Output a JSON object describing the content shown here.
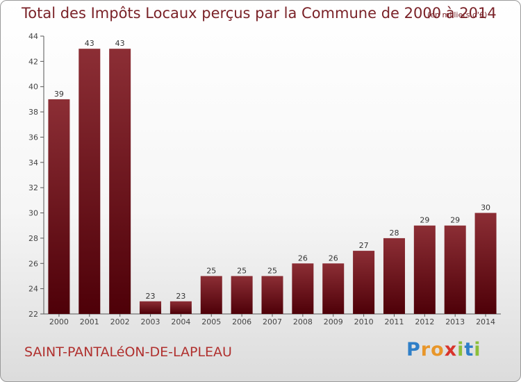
{
  "header": {
    "title": "Total des Impôts Locaux perçus par la Commune de 2000 à 2014",
    "subtitle": "(en milliers d'€)"
  },
  "footer": {
    "commune": "SAINT-PANTALéON-DE-LAPLEAU",
    "logo": {
      "letters": [
        "P",
        "r",
        "o",
        "x",
        "i",
        "t",
        "i"
      ],
      "colors": [
        "#2f7fc8",
        "#e8962a",
        "#e8962a",
        "#d8342c",
        "#8cbf3a",
        "#2f7fc8",
        "#8cbf3a"
      ]
    }
  },
  "colors": {
    "bar_top": "#8c2e35",
    "bar_bottom": "#4e0008",
    "title": "#7a2228"
  },
  "chart_data": {
    "type": "bar",
    "title": "Total des Impôts Locaux perçus par la Commune de 2000 à 2014",
    "subtitle": "(en milliers d'€)",
    "categories": [
      "2000",
      "2001",
      "2002",
      "2003",
      "2004",
      "2005",
      "2006",
      "2007",
      "2008",
      "2009",
      "2010",
      "2011",
      "2012",
      "2013",
      "2014"
    ],
    "values": [
      39,
      43,
      43,
      23,
      23,
      25,
      25,
      25,
      26,
      26,
      27,
      28,
      29,
      29,
      30
    ],
    "ylim": [
      22,
      44
    ],
    "yticks": [
      22,
      24,
      26,
      28,
      30,
      32,
      34,
      36,
      38,
      40,
      42,
      44
    ],
    "grid": false,
    "data_labels": true
  }
}
